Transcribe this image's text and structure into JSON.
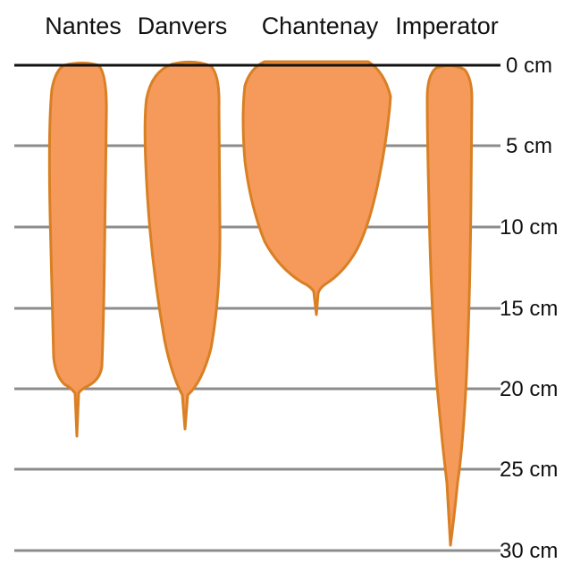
{
  "varieties": [
    {
      "name": "Nantes",
      "length_cm": 23
    },
    {
      "name": "Danvers",
      "length_cm": 23
    },
    {
      "name": "Chantenay",
      "length_cm": 16
    },
    {
      "name": "Imperator",
      "length_cm": 30
    }
  ],
  "depth_scale": {
    "labels": [
      "0 cm",
      "5 cm",
      "10 cm",
      "15 cm",
      "20 cm",
      "25 cm",
      "30 cm"
    ]
  },
  "colors": {
    "carrot_fill": "#F59A5A",
    "carrot_outline": "#D97F24",
    "surface_line": "#111111",
    "depth_line": "#8C8C8C"
  }
}
